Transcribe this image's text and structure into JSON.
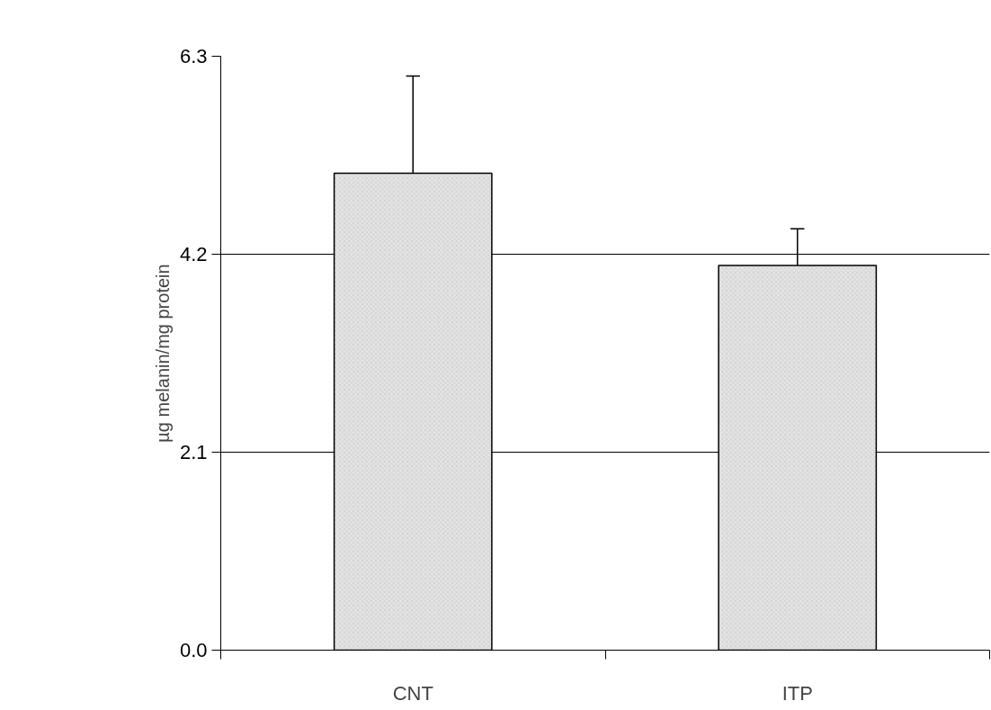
{
  "chart_data": {
    "type": "bar",
    "ylabel": "µg melanin/mg protein",
    "categories": [
      "CNT",
      "ITP"
    ],
    "values": [
      5.06,
      4.08
    ],
    "errors": [
      1.03,
      0.39
    ],
    "color": "#e4e4e4",
    "ylim": [
      0,
      6.3
    ],
    "yticks": [
      {
        "value": 0,
        "label": "0.0"
      },
      {
        "value": 2.1,
        "label": "2.1"
      },
      {
        "value": 4.2,
        "label": "4.2"
      },
      {
        "value": 6.3,
        "label": "6.3"
      }
    ],
    "grid": "y"
  }
}
